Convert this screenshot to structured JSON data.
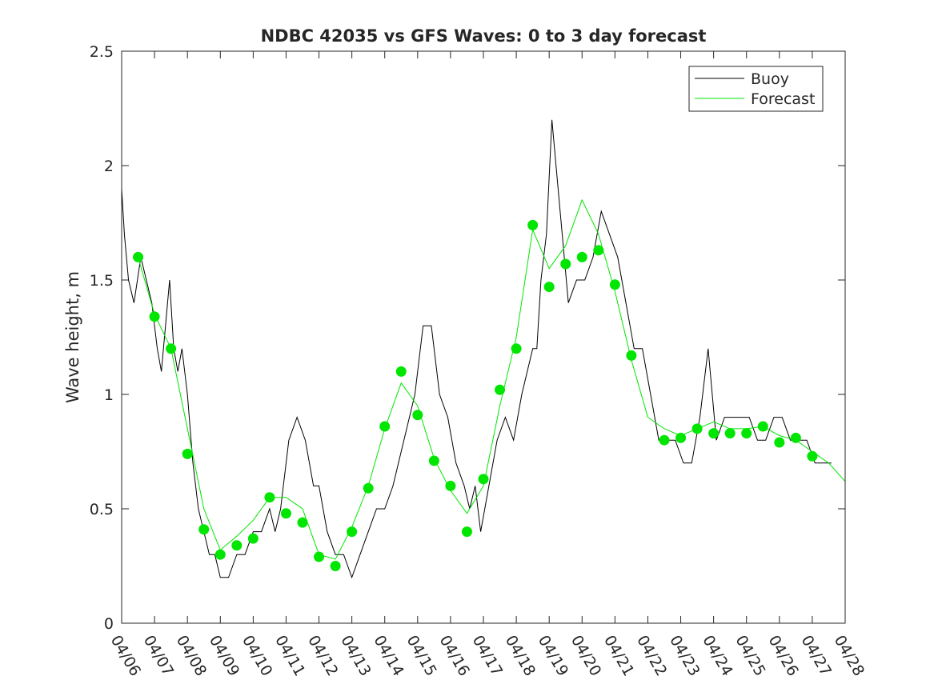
{
  "chart_data": {
    "type": "line",
    "title": "NDBC 42035 vs GFS Waves: 0 to 3 day forecast",
    "xlabel": "",
    "ylabel": "Wave height, m",
    "xlim": [
      "04/06",
      "04/28"
    ],
    "ylim": [
      0,
      2.5
    ],
    "grid": false,
    "legend_position": "top-right",
    "x_tick_labels": [
      "04/06",
      "04/07",
      "04/08",
      "04/09",
      "04/10",
      "04/11",
      "04/12",
      "04/13",
      "04/14",
      "04/15",
      "04/16",
      "04/17",
      "04/18",
      "04/19",
      "04/20",
      "04/21",
      "04/22",
      "04/23",
      "04/24",
      "04/25",
      "04/26",
      "04/27",
      "04/28"
    ],
    "y_tick_labels": [
      "0",
      "0.5",
      "1",
      "1.5",
      "2",
      "2.5"
    ],
    "colors": {
      "buoy": "#000000",
      "forecast": "#00e600",
      "analysis_points": "#00e600"
    },
    "series": [
      {
        "name": "Buoy",
        "x": [
          "04/06 00:00",
          "04/06 02:00",
          "04/06 05:00",
          "04/06 09:00",
          "04/06 14:00",
          "04/06 18:00",
          "04/06 22:00",
          "04/07 02:00",
          "04/07 05:00",
          "04/07 08:00",
          "04/07 11:00",
          "04/07 14:00",
          "04/07 17:00",
          "04/07 20:00",
          "04/08 00:00",
          "04/08 04:00",
          "04/08 08:00",
          "04/08 12:00",
          "04/08 16:00",
          "04/08 20:00",
          "04/09 00:00",
          "04/09 06:00",
          "04/09 12:00",
          "04/09 18:00",
          "04/10 00:00",
          "04/10 06:00",
          "04/10 12:00",
          "04/10 16:00",
          "04/10 20:00",
          "04/11 02:00",
          "04/11 08:00",
          "04/11 14:00",
          "04/11 20:00",
          "04/12 00:00",
          "04/12 06:00",
          "04/12 12:00",
          "04/12 18:00",
          "04/13 00:00",
          "04/13 06:00",
          "04/13 12:00",
          "04/13 18:00",
          "04/14 00:00",
          "04/14 06:00",
          "04/14 10:00",
          "04/14 14:00",
          "04/14 18:00",
          "04/14 22:00",
          "04/15 04:00",
          "04/15 10:00",
          "04/15 16:00",
          "04/15 22:00",
          "04/16 04:00",
          "04/16 10:00",
          "04/16 14:00",
          "04/16 18:00",
          "04/16 22:00",
          "04/17 04:00",
          "04/17 10:00",
          "04/17 16:00",
          "04/17 22:00",
          "04/18 04:00",
          "04/18 08:00",
          "04/18 12:00",
          "04/18 15:00",
          "04/18 18:00",
          "04/18 22:00",
          "04/19 02:00",
          "04/19 08:00",
          "04/19 14:00",
          "04/19 20:00",
          "04/20 02:00",
          "04/20 08:00",
          "04/20 14:00",
          "04/20 20:00",
          "04/21 02:00",
          "04/21 08:00",
          "04/21 14:00",
          "04/21 20:00",
          "04/22 02:00",
          "04/22 08:00",
          "04/22 14:00",
          "04/22 20:00",
          "04/23 02:00",
          "04/23 08:00",
          "04/23 14:00",
          "04/23 20:00",
          "04/24 02:00",
          "04/24 08:00",
          "04/24 14:00",
          "04/24 20:00",
          "04/25 02:00",
          "04/25 08:00",
          "04/25 14:00",
          "04/25 20:00",
          "04/26 02:00",
          "04/26 08:00",
          "04/26 14:00",
          "04/26 20:00",
          "04/27 02:00",
          "04/27 08:00",
          "04/27 14:00"
        ],
        "values": [
          1.9,
          1.7,
          1.5,
          1.4,
          1.6,
          1.5,
          1.4,
          1.2,
          1.1,
          1.3,
          1.5,
          1.2,
          1.1,
          1.2,
          1.0,
          0.7,
          0.5,
          0.4,
          0.3,
          0.3,
          0.2,
          0.2,
          0.3,
          0.3,
          0.4,
          0.4,
          0.5,
          0.4,
          0.5,
          0.8,
          0.9,
          0.8,
          0.6,
          0.6,
          0.4,
          0.3,
          0.3,
          0.2,
          0.3,
          0.4,
          0.5,
          0.5,
          0.6,
          0.7,
          0.8,
          0.9,
          1.0,
          1.3,
          1.3,
          1.0,
          0.9,
          0.7,
          0.6,
          0.5,
          0.6,
          0.4,
          0.6,
          0.8,
          0.9,
          0.8,
          1.0,
          1.1,
          1.2,
          1.2,
          1.5,
          1.7,
          2.2,
          1.8,
          1.4,
          1.5,
          1.5,
          1.6,
          1.8,
          1.7,
          1.6,
          1.4,
          1.2,
          1.2,
          1.0,
          0.8,
          0.8,
          0.8,
          0.7,
          0.7,
          0.9,
          1.2,
          0.8,
          0.9,
          0.9,
          0.9,
          0.9,
          0.8,
          0.8,
          0.9,
          0.9,
          0.8,
          0.8,
          0.8,
          0.7,
          0.7,
          0.7
        ]
      },
      {
        "name": "Forecast",
        "x": [
          "04/06 12:00",
          "04/07 00:00",
          "04/07 12:00",
          "04/08 00:00",
          "04/08 12:00",
          "04/09 00:00",
          "04/09 12:00",
          "04/10 00:00",
          "04/10 12:00",
          "04/11 00:00",
          "04/11 12:00",
          "04/12 00:00",
          "04/12 12:00",
          "04/13 00:00",
          "04/13 12:00",
          "04/14 00:00",
          "04/14 12:00",
          "04/15 00:00",
          "04/15 12:00",
          "04/16 00:00",
          "04/16 12:00",
          "04/17 00:00",
          "04/17 12:00",
          "04/18 00:00",
          "04/18 12:00",
          "04/19 00:00",
          "04/19 12:00",
          "04/20 00:00",
          "04/20 12:00",
          "04/21 00:00",
          "04/21 12:00",
          "04/22 00:00",
          "04/22 12:00",
          "04/23 00:00",
          "04/23 12:00",
          "04/24 00:00",
          "04/24 12:00",
          "04/25 00:00",
          "04/25 12:00",
          "04/26 00:00",
          "04/26 12:00",
          "04/27 00:00",
          "04/27 12:00",
          "04/28 00:00"
        ],
        "values": [
          1.6,
          1.35,
          1.2,
          0.85,
          0.5,
          0.32,
          0.38,
          0.45,
          0.55,
          0.55,
          0.5,
          0.3,
          0.28,
          0.42,
          0.6,
          0.85,
          1.05,
          0.95,
          0.72,
          0.58,
          0.48,
          0.6,
          0.95,
          1.25,
          1.72,
          1.55,
          1.65,
          1.85,
          1.7,
          1.45,
          1.15,
          0.9,
          0.85,
          0.82,
          0.85,
          0.88,
          0.85,
          0.85,
          0.86,
          0.82,
          0.8,
          0.75,
          0.7,
          0.62
        ]
      },
      {
        "name": "",
        "role": "analysis-points",
        "x": [
          "04/06 12:00",
          "04/07 00:00",
          "04/07 12:00",
          "04/08 00:00",
          "04/08 12:00",
          "04/09 00:00",
          "04/09 12:00",
          "04/10 00:00",
          "04/10 12:00",
          "04/11 00:00",
          "04/11 12:00",
          "04/12 00:00",
          "04/12 12:00",
          "04/13 00:00",
          "04/13 12:00",
          "04/14 00:00",
          "04/14 12:00",
          "04/15 00:00",
          "04/15 12:00",
          "04/16 00:00",
          "04/16 12:00",
          "04/17 00:00",
          "04/17 12:00",
          "04/18 00:00",
          "04/18 12:00",
          "04/19 00:00",
          "04/19 12:00",
          "04/20 00:00",
          "04/20 12:00",
          "04/21 00:00",
          "04/21 12:00",
          "04/22 12:00",
          "04/23 00:00",
          "04/23 12:00",
          "04/24 00:00",
          "04/24 12:00",
          "04/25 00:00",
          "04/25 12:00",
          "04/26 00:00",
          "04/26 12:00",
          "04/27 00:00"
        ],
        "values": [
          1.6,
          1.34,
          1.2,
          0.74,
          0.41,
          0.3,
          0.34,
          0.37,
          0.55,
          0.48,
          0.44,
          0.29,
          0.25,
          0.4,
          0.59,
          0.86,
          1.1,
          0.91,
          0.71,
          0.6,
          0.4,
          0.63,
          1.02,
          1.2,
          1.74,
          1.47,
          1.57,
          1.6,
          1.63,
          1.48,
          1.17,
          0.8,
          0.81,
          0.85,
          0.83,
          0.83,
          0.83,
          0.86,
          0.79,
          0.81,
          0.73
        ]
      }
    ]
  }
}
